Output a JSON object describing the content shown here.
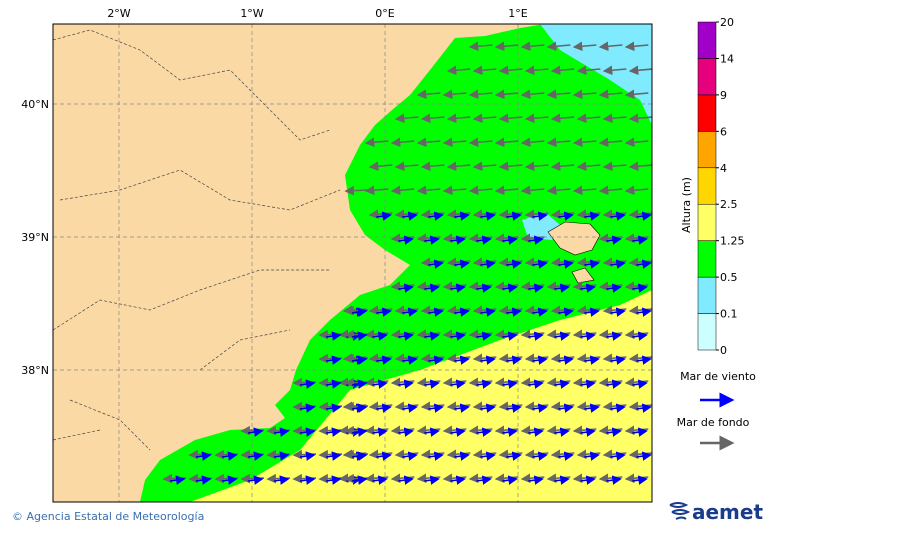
{
  "map": {
    "lon_labels": [
      "2°W",
      "1°W",
      "0°E",
      "1°E"
    ],
    "lat_labels": [
      "40°N",
      "39°N",
      "38°N"
    ]
  },
  "colorbar": {
    "label": "Altura (m)",
    "levels": [
      0,
      0.1,
      0.5,
      1.25,
      2.5,
      4,
      6,
      9,
      14,
      20
    ],
    "colors": [
      "#ccffff",
      "#80eaff",
      "#00ff00",
      "#ffff66",
      "#ffd700",
      "#ffa500",
      "#ff0000",
      "#e6007e",
      "#a000c8"
    ]
  },
  "legend": {
    "wind_sea": "Mar de viento",
    "swell": "Mar de fondo"
  },
  "footer": {
    "credit": "© Agencia Estatal de Meteorología",
    "logo": "aemet"
  }
}
